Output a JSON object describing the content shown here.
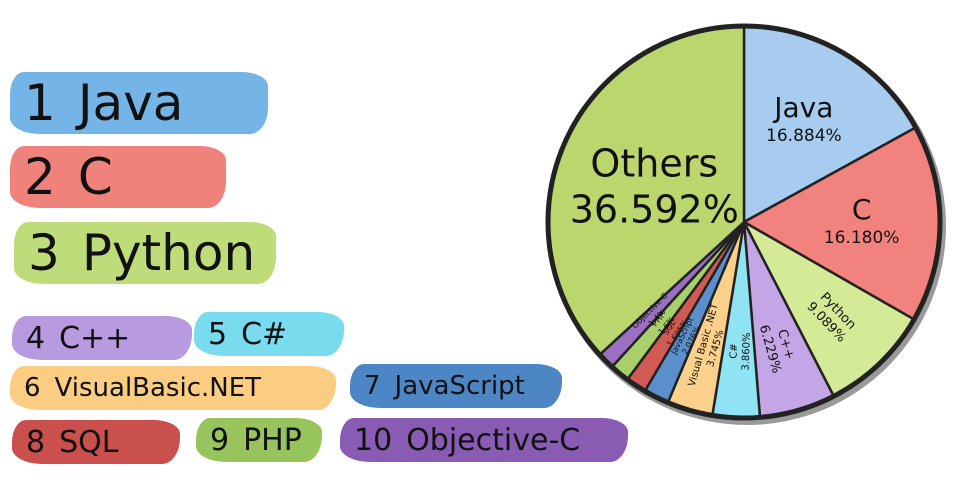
{
  "ranking": [
    {
      "num": "1",
      "name": "Java",
      "color": "#74b4e6"
    },
    {
      "num": "2",
      "name": "C",
      "color": "#ef837b"
    },
    {
      "num": "3",
      "name": "Python",
      "color": "#bfdc7a"
    },
    {
      "num": "4",
      "name": "C++",
      "color": "#b79ae0"
    },
    {
      "num": "5",
      "name": "C#",
      "color": "#78dbee"
    },
    {
      "num": "6",
      "name": "VisualBasic.NET",
      "color": "#fbcd82"
    },
    {
      "num": "7",
      "name": "JavaScript",
      "color": "#4d86c4"
    },
    {
      "num": "8",
      "name": "SQL",
      "color": "#c9504c"
    },
    {
      "num": "9",
      "name": "PHP",
      "color": "#97c45c"
    },
    {
      "num": "10",
      "name": "Objective-C",
      "color": "#8a5bb3"
    }
  ],
  "chart_data": {
    "type": "pie",
    "slices": [
      {
        "name": "Java",
        "value": 16.884,
        "label": "16.884%",
        "color": "#a8ccf0"
      },
      {
        "name": "C",
        "value": 16.18,
        "label": "16.180%",
        "color": "#f2827d"
      },
      {
        "name": "Python",
        "value": 9.089,
        "label": "9.089%",
        "color": "#d4ea96"
      },
      {
        "name": "C++",
        "value": 6.229,
        "label": "6.229%",
        "color": "#c4a6e6"
      },
      {
        "name": "C#",
        "value": 3.86,
        "label": "3.860%",
        "color": "#8fe3f2"
      },
      {
        "name": "Visual Basic .NET",
        "value": 3.745,
        "label": "3.745%",
        "color": "#fbd08a"
      },
      {
        "name": "JavaScript",
        "value": 2.076,
        "label": "2.076%",
        "color": "#5a8fcc"
      },
      {
        "name": "SQL",
        "value": 1.695,
        "label": "1.695%",
        "color": "#d25a55"
      },
      {
        "name": "PHP",
        "value": 1.6,
        "label": "1.6%",
        "color": "#a8cf6a"
      },
      {
        "name": "Objective-C",
        "value": 1.4,
        "label": "1.4%",
        "color": "#9b6fc2"
      },
      {
        "name": "Others",
        "value": 36.592,
        "label": "36.592%",
        "color": "#bcd66e"
      }
    ]
  }
}
